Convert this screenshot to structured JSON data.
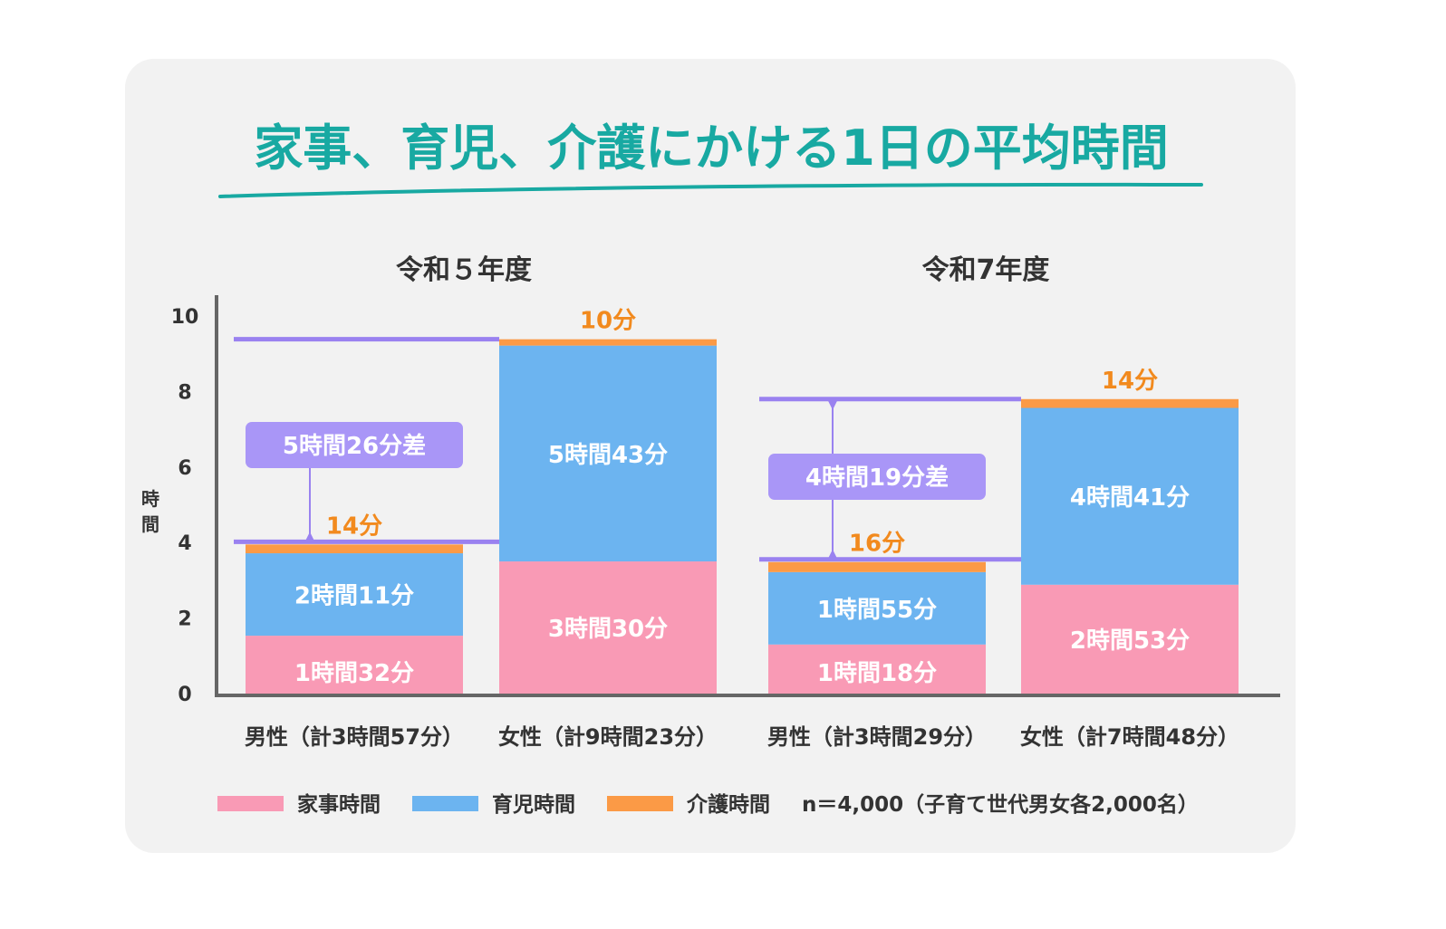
{
  "chart_data": {
    "type": "bar",
    "stacked": true,
    "title": "家事、育児、介護にかける1日の平均時間",
    "ylabel": "時間",
    "ylim": [
      0,
      10
    ],
    "yticks": [
      "0",
      "2",
      "4",
      "6",
      "8",
      "10"
    ],
    "groups": [
      {
        "title": "令和５年度",
        "categories": [
          "男性（計3時間57分）",
          "女性（計9時間23分）"
        ],
        "difference_label": "5時間26分差"
      },
      {
        "title": "令和7年度",
        "categories": [
          "男性（計3時間29分）",
          "女性（計7時間48分）"
        ],
        "difference_label": "4時間19分差"
      }
    ],
    "series": [
      {
        "name": "家事時間",
        "color": "#f99ab5",
        "values_hours": [
          1.533,
          3.5,
          1.3,
          2.883
        ],
        "labels": [
          "1時間32分",
          "3時間30分",
          "1時間18分",
          "2時間53分"
        ]
      },
      {
        "name": "育児時間",
        "color": "#6cb4f0",
        "values_hours": [
          2.183,
          5.717,
          1.917,
          4.683
        ],
        "labels": [
          "2時間11分",
          "5時間43分",
          "1時間55分",
          "4時間41分"
        ]
      },
      {
        "name": "介護時間",
        "color": "#fb9a46",
        "values_hours": [
          0.233,
          0.167,
          0.267,
          0.233
        ],
        "labels": [
          "14分",
          "10分",
          "16分",
          "14分"
        ]
      }
    ],
    "note": "n＝4,000（子育て世代男女各2,000名）",
    "legend_position": "bottom",
    "grid": false,
    "colors": {
      "title": "#18a9a2",
      "difference": "#9a82f0",
      "difference_box": "#a996f7",
      "care_label": "#f28a1e",
      "axis": "#666666"
    }
  }
}
